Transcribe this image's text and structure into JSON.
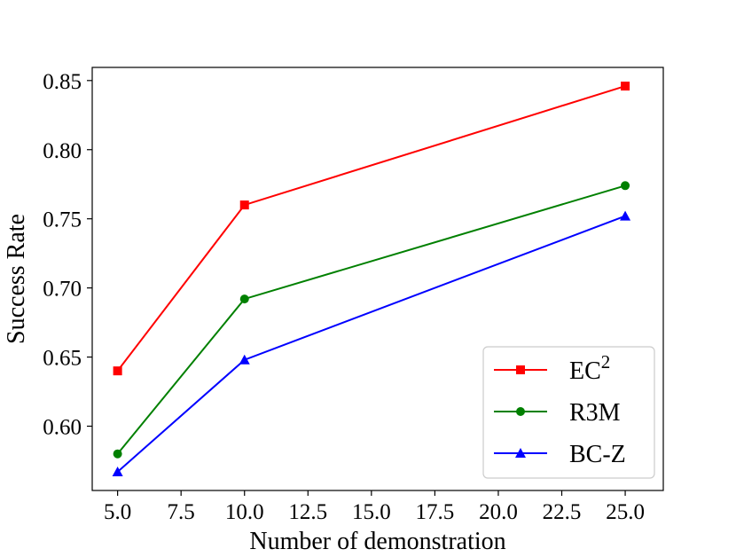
{
  "chart_data": {
    "type": "line",
    "title": "",
    "xlabel": "Number of demonstration",
    "ylabel": "Success Rate",
    "x": [
      5,
      10,
      25
    ],
    "xlim": [
      4.0,
      26.5
    ],
    "ylim": [
      0.5535,
      0.8595
    ],
    "xticks": [
      5.0,
      7.5,
      10.0,
      12.5,
      15.0,
      17.5,
      20.0,
      22.5,
      25.0
    ],
    "xtick_labels": [
      "5.0",
      "7.5",
      "10.0",
      "12.5",
      "15.0",
      "17.5",
      "20.0",
      "22.5",
      "25.0"
    ],
    "yticks": [
      0.6,
      0.65,
      0.7,
      0.75,
      0.8,
      0.85
    ],
    "ytick_labels": [
      "0.60",
      "0.65",
      "0.70",
      "0.75",
      "0.80",
      "0.85"
    ],
    "grid": false,
    "legend_position": "lower-right",
    "series": [
      {
        "name": "EC2",
        "name_base": "EC",
        "name_sup": "2",
        "color": "#ff0000",
        "marker": "square",
        "values": [
          0.64,
          0.76,
          0.846
        ]
      },
      {
        "name": "R3M",
        "name_base": "R3M",
        "name_sup": "",
        "color": "#008000",
        "marker": "circle",
        "values": [
          0.58,
          0.692,
          0.774
        ]
      },
      {
        "name": "BC-Z",
        "name_base": "BC-Z",
        "name_sup": "",
        "color": "#0000ff",
        "marker": "triangle",
        "values": [
          0.567,
          0.648,
          0.752
        ]
      }
    ]
  }
}
